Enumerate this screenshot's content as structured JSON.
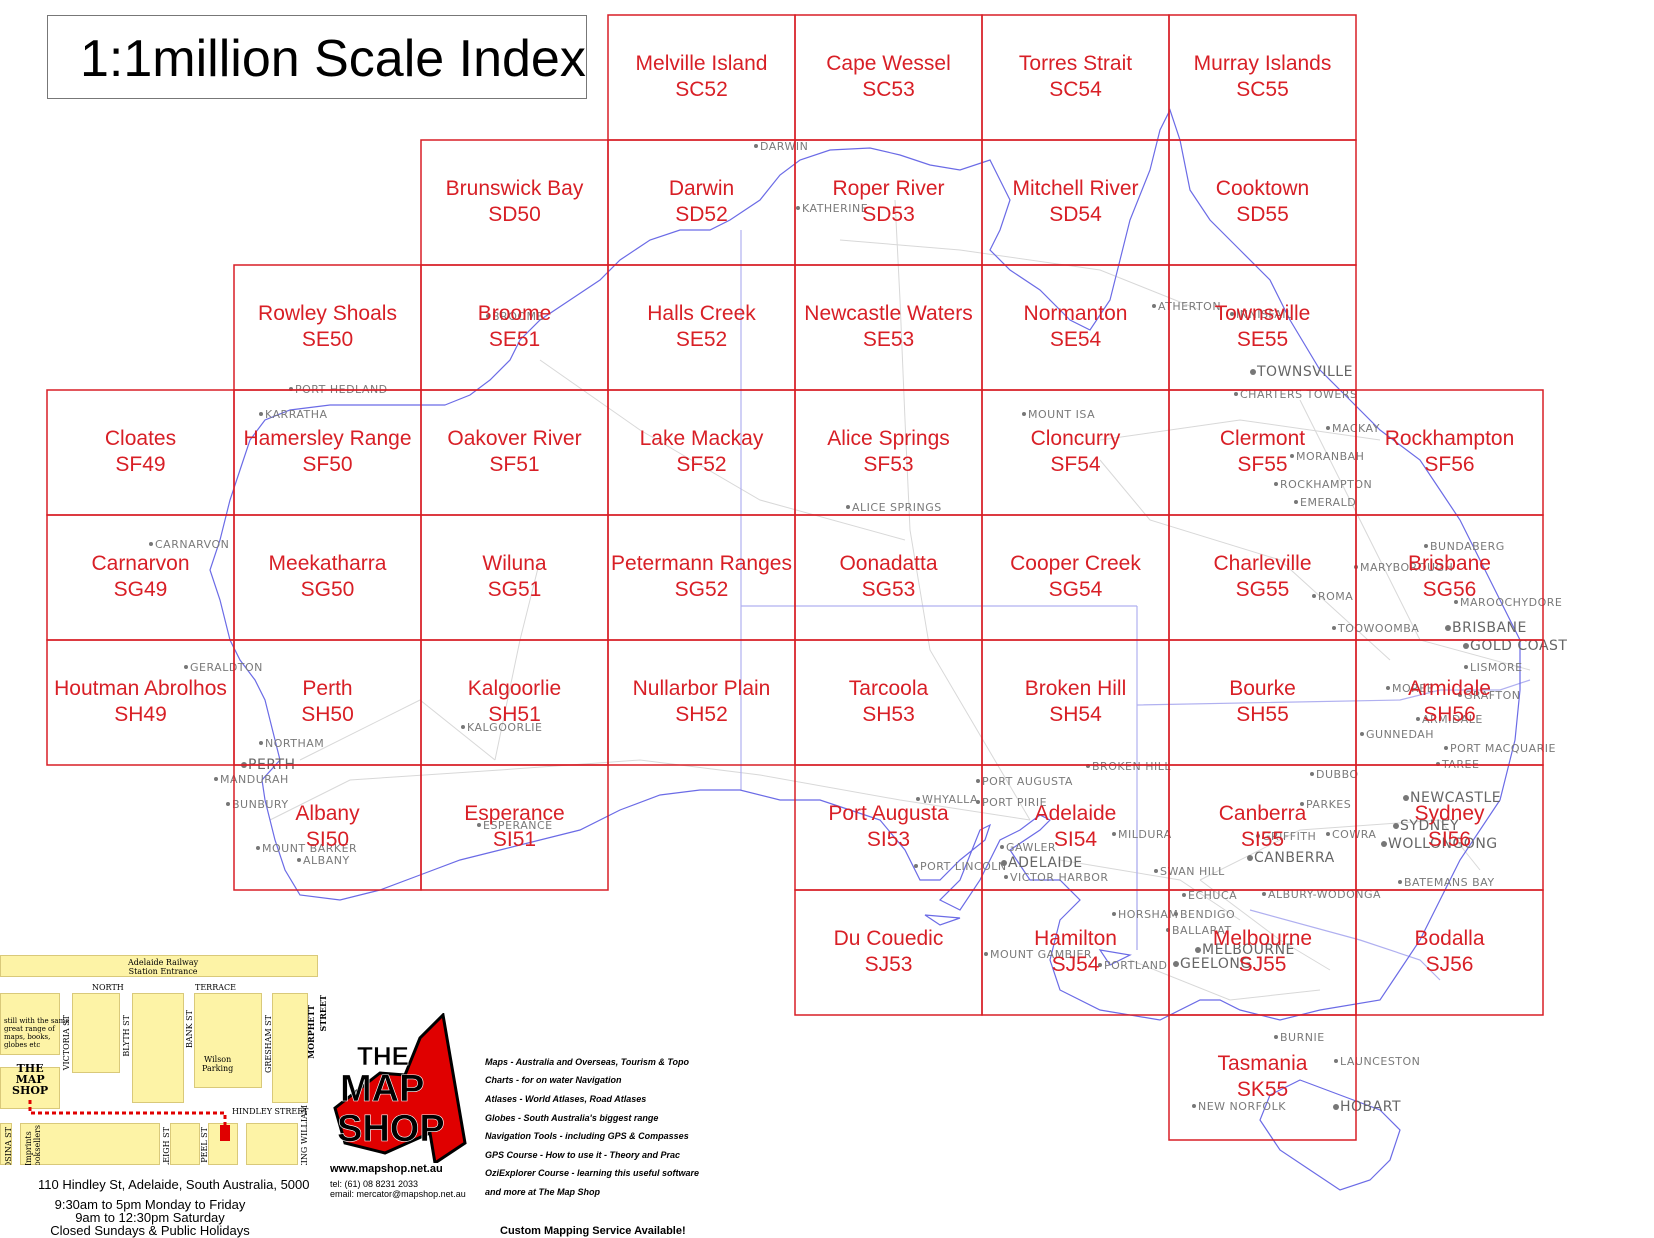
{
  "title": "1:1million Scale Index",
  "tiles": [
    {
      "name": "Melville Island",
      "code": "SC52",
      "col": 3,
      "row": 0
    },
    {
      "name": "Cape Wessel",
      "code": "SC53",
      "col": 4,
      "row": 0
    },
    {
      "name": "Torres Strait",
      "code": "SC54",
      "col": 5,
      "row": 0
    },
    {
      "name": "Murray Islands",
      "code": "SC55",
      "col": 6,
      "row": 0
    },
    {
      "name": "Brunswick Bay",
      "code": "SD50",
      "col": 2,
      "row": 1
    },
    {
      "name": "Darwin",
      "code": "SD52",
      "col": 3,
      "row": 1
    },
    {
      "name": "Roper River",
      "code": "SD53",
      "col": 4,
      "row": 1
    },
    {
      "name": "Mitchell River",
      "code": "SD54",
      "col": 5,
      "row": 1
    },
    {
      "name": "Cooktown",
      "code": "SD55",
      "col": 6,
      "row": 1
    },
    {
      "name": "Rowley Shoals",
      "code": "SE50",
      "col": 1,
      "row": 2
    },
    {
      "name": "Broome",
      "code": "SE51",
      "col": 2,
      "row": 2
    },
    {
      "name": "Halls Creek",
      "code": "SE52",
      "col": 3,
      "row": 2
    },
    {
      "name": "Newcastle Waters",
      "code": "SE53",
      "col": 4,
      "row": 2
    },
    {
      "name": "Normanton",
      "code": "SE54",
      "col": 5,
      "row": 2
    },
    {
      "name": "Townsville",
      "code": "SE55",
      "col": 6,
      "row": 2
    },
    {
      "name": "Cloates",
      "code": "SF49",
      "col": 0,
      "row": 3
    },
    {
      "name": "Hamersley Range",
      "code": "SF50",
      "col": 1,
      "row": 3
    },
    {
      "name": "Oakover River",
      "code": "SF51",
      "col": 2,
      "row": 3
    },
    {
      "name": "Lake Mackay",
      "code": "SF52",
      "col": 3,
      "row": 3
    },
    {
      "name": "Alice Springs",
      "code": "SF53",
      "col": 4,
      "row": 3
    },
    {
      "name": "Cloncurry",
      "code": "SF54",
      "col": 5,
      "row": 3
    },
    {
      "name": "Clermont",
      "code": "SF55",
      "col": 6,
      "row": 3
    },
    {
      "name": "Rockhampton",
      "code": "SF56",
      "col": 7,
      "row": 3
    },
    {
      "name": "Carnarvon",
      "code": "SG49",
      "col": 0,
      "row": 4
    },
    {
      "name": "Meekatharra",
      "code": "SG50",
      "col": 1,
      "row": 4
    },
    {
      "name": "Wiluna",
      "code": "SG51",
      "col": 2,
      "row": 4
    },
    {
      "name": "Petermann Ranges",
      "code": "SG52",
      "col": 3,
      "row": 4
    },
    {
      "name": "Oonadatta",
      "code": "SG53",
      "col": 4,
      "row": 4
    },
    {
      "name": "Cooper Creek",
      "code": "SG54",
      "col": 5,
      "row": 4
    },
    {
      "name": "Charleville",
      "code": "SG55",
      "col": 6,
      "row": 4
    },
    {
      "name": "Brisbane",
      "code": "SG56",
      "col": 7,
      "row": 4
    },
    {
      "name": "Houtman Abrolhos",
      "code": "SH49",
      "col": 0,
      "row": 5
    },
    {
      "name": "Perth",
      "code": "SH50",
      "col": 1,
      "row": 5
    },
    {
      "name": "Kalgoorlie",
      "code": "SH51",
      "col": 2,
      "row": 5
    },
    {
      "name": "Nullarbor Plain",
      "code": "SH52",
      "col": 3,
      "row": 5
    },
    {
      "name": "Tarcoola",
      "code": "SH53",
      "col": 4,
      "row": 5
    },
    {
      "name": "Broken Hill",
      "code": "SH54",
      "col": 5,
      "row": 5
    },
    {
      "name": "Bourke",
      "code": "SH55",
      "col": 6,
      "row": 5
    },
    {
      "name": "Armidale",
      "code": "SH56",
      "col": 7,
      "row": 5
    },
    {
      "name": "Albany",
      "code": "SI50",
      "col": 1,
      "row": 6
    },
    {
      "name": "Esperance",
      "code": "SI51",
      "col": 2,
      "row": 6
    },
    {
      "name": "Port Augusta",
      "code": "SI53",
      "col": 4,
      "row": 6
    },
    {
      "name": "Adelaide",
      "code": "SI54",
      "col": 5,
      "row": 6
    },
    {
      "name": "Canberra",
      "code": "SI55",
      "col": 6,
      "row": 6
    },
    {
      "name": "Sydney",
      "code": "SI56",
      "col": 7,
      "row": 6
    },
    {
      "name": "Du Couedic",
      "code": "SJ53",
      "col": 4,
      "row": 7
    },
    {
      "name": "Hamilton",
      "code": "SJ54",
      "col": 5,
      "row": 7
    },
    {
      "name": "Melbourne",
      "code": "SJ55",
      "col": 6,
      "row": 7
    },
    {
      "name": "Bodalla",
      "code": "SJ56",
      "col": 7,
      "row": 7
    },
    {
      "name": "Tasmania",
      "code": "SK55",
      "col": 6,
      "row": 8
    }
  ],
  "cities": [
    {
      "name": "DARWIN"
    },
    {
      "name": "KATHERINE"
    },
    {
      "name": "BROOME"
    },
    {
      "name": "PORT HEDLAND"
    },
    {
      "name": "KARRATHA"
    },
    {
      "name": "ATHERTON"
    },
    {
      "name": "INNISFAIL"
    },
    {
      "name": "TOWNSVILLE"
    },
    {
      "name": "CHARTERS TOWERS"
    },
    {
      "name": "MOUNT ISA"
    },
    {
      "name": "MACKAY"
    },
    {
      "name": "MORANBAH"
    },
    {
      "name": "ROCKHAMPTON"
    },
    {
      "name": "EMERALD"
    },
    {
      "name": "ALICE SPRINGS"
    },
    {
      "name": "CARNARVON"
    },
    {
      "name": "BUNDABERG"
    },
    {
      "name": "MARYBOROUGH"
    },
    {
      "name": "MAROOCHYDORE"
    },
    {
      "name": "ROMA"
    },
    {
      "name": "TOOWOOMBA"
    },
    {
      "name": "BRISBANE"
    },
    {
      "name": "GOLD COAST"
    },
    {
      "name": "LISMORE"
    },
    {
      "name": "GERALDTON"
    },
    {
      "name": "MOREE"
    },
    {
      "name": "GRAFTON"
    },
    {
      "name": "ARMIDALE"
    },
    {
      "name": "GUNNEDAH"
    },
    {
      "name": "PORT MACQUARIE"
    },
    {
      "name": "KALGOORLIE"
    },
    {
      "name": "NORTHAM"
    },
    {
      "name": "PERTH"
    },
    {
      "name": "MANDURAH"
    },
    {
      "name": "BUNBURY"
    },
    {
      "name": "MOUNT BARKER"
    },
    {
      "name": "ALBANY"
    },
    {
      "name": "ESPERANCE"
    },
    {
      "name": "TAREE"
    },
    {
      "name": "BROKEN HILL"
    },
    {
      "name": "DUBBO"
    },
    {
      "name": "PORT AUGUSTA"
    },
    {
      "name": "WHYALLA"
    },
    {
      "name": "PORT PIRIE"
    },
    {
      "name": "NEWCASTLE"
    },
    {
      "name": "PARKES"
    },
    {
      "name": "PORT LINCOLN"
    },
    {
      "name": "GAWLER"
    },
    {
      "name": "ADELAIDE"
    },
    {
      "name": "MILDURA"
    },
    {
      "name": "GRIFFITH"
    },
    {
      "name": "COWRA"
    },
    {
      "name": "SYDNEY"
    },
    {
      "name": "WOLLONGONG"
    },
    {
      "name": "CANBERRA"
    },
    {
      "name": "VICTOR HARBOR"
    },
    {
      "name": "SWAN HILL"
    },
    {
      "name": "BATEMANS BAY"
    },
    {
      "name": "ECHUCA"
    },
    {
      "name": "ALBURY-WODONGA"
    },
    {
      "name": "HORSHAM"
    },
    {
      "name": "BENDIGO"
    },
    {
      "name": "BALLARAT"
    },
    {
      "name": "MOUNT GAMBIER"
    },
    {
      "name": "MELBOURNE"
    },
    {
      "name": "PORTLAND"
    },
    {
      "name": "GEELONG"
    },
    {
      "name": "BURNIE"
    },
    {
      "name": "LAUNCESTON"
    },
    {
      "name": "NEW NORFOLK"
    },
    {
      "name": "HOBART"
    }
  ],
  "shop": {
    "street_labels": {
      "railway": "Adelaide Railway\nStation Entrance",
      "north": "NORTH",
      "terrace": "TERRACE",
      "victoria": "VICTORIA ST",
      "blyth": "BLYTH ST",
      "bank": "BANK ST",
      "gresham": "GRESHAM ST",
      "morphett": "MORPHETT",
      "street": "STREET",
      "hindley": "HINDLEY   STREET",
      "leigh": "LEIGH ST",
      "peel": "PEEL ST",
      "rosina": "ROSINA ST",
      "king_william": "KING WILLIAM",
      "wilson": "Wilson\nParking",
      "imprints": "Imprints\nBooksellers"
    },
    "still_text": "still with the same\ngreat range of\nmaps, books,\nglobes etc",
    "shop_badge": "THE\nMAP\nSHOP",
    "address": "110 Hindley St, Adelaide, South Australia, 5000",
    "hours": [
      "9:30am to 5pm Monday to Friday",
      "9am to 12:30pm Saturday",
      "Closed Sundays & Public Holidays"
    ],
    "logo_text": [
      "THE",
      "MAP",
      "SHOP"
    ],
    "website": "www.mapshop.net.au",
    "tel": "tel: (61) 08 8231 2033",
    "email": "email: mercator@mapshop.net.au",
    "services": [
      "Maps - Australia and Overseas, Tourism & Topo",
      "Charts - for on water Navigation",
      "Atlases - World Atlases, Road Atlases",
      "Globes - South Australia's biggest range",
      "Navigation Tools - including GPS & Compasses",
      "GPS Course - How to use it - Theory and Prac",
      "OziExplorer Course - learning this useful software",
      "and more at The Map Shop"
    ],
    "custom": "Custom Mapping Service Available!"
  },
  "colors": {
    "grid": "#d81f26",
    "coast": "#6b6be6",
    "road": "#d5d5d5",
    "border": "#b0b0f0",
    "city": "#7a7a7a",
    "street_block": "#fdf3a6",
    "route": "#e00000"
  }
}
